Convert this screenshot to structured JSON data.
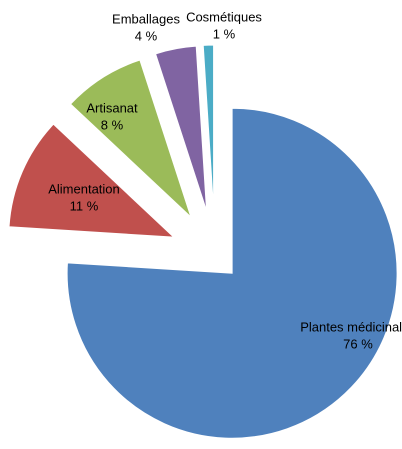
{
  "chart_data": {
    "type": "pie",
    "categories": [
      "Plantes médicinales",
      "Alimentation",
      "Artisanat",
      "Emballages",
      "Cosmétiques"
    ],
    "values": [
      76,
      11,
      8,
      4,
      1
    ],
    "value_labels": [
      "76 %",
      "11 %",
      "8 %",
      "4 %",
      "1 %"
    ],
    "colors": [
      "#4f81bd",
      "#c0504d",
      "#9bbb59",
      "#8064a2",
      "#4bacc6"
    ],
    "exploded": true
  }
}
